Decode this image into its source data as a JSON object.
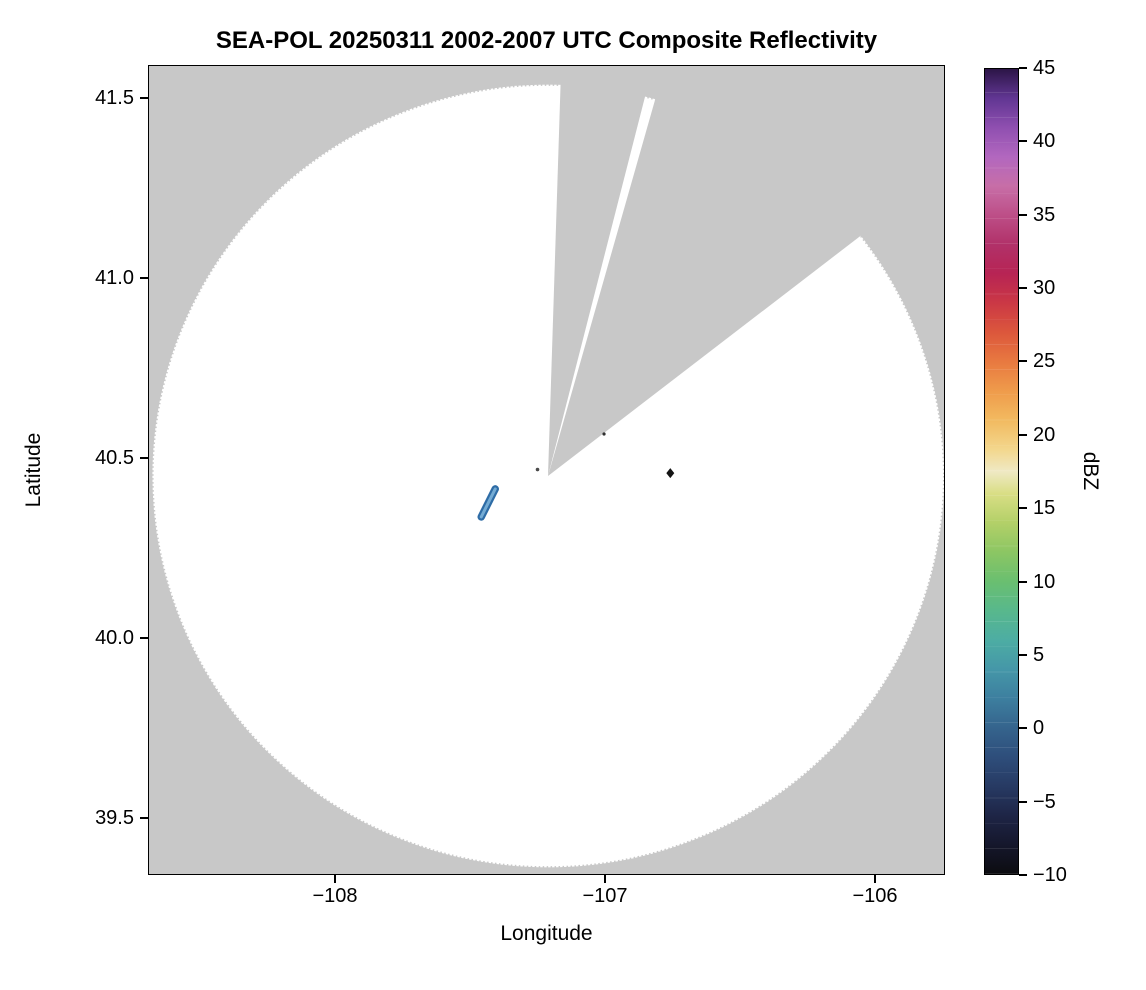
{
  "chart_data": {
    "type": "heatmap",
    "subtype": "radar_composite_reflectivity",
    "title": "SEA-POL 20250311 2002-2007 UTC Composite Reflectivity",
    "xlabel": "Longitude",
    "ylabel": "Latitude",
    "xlim": [
      -108.6926,
      -105.7407
    ],
    "ylim": [
      39.3417,
      41.5917
    ],
    "grid": false,
    "x_ticks": [
      {
        "value": -108,
        "label": "−108"
      },
      {
        "value": -107,
        "label": "−107"
      },
      {
        "value": -106,
        "label": "−106"
      }
    ],
    "y_ticks": [
      {
        "value": 41.5,
        "label": "41.5"
      },
      {
        "value": 41.0,
        "label": "41.0"
      },
      {
        "value": 40.5,
        "label": "40.5"
      },
      {
        "value": 40.0,
        "label": "40.0"
      },
      {
        "value": 39.5,
        "label": "39.5"
      }
    ],
    "colorbar": {
      "label": "dBZ",
      "min": -10,
      "max": 45,
      "ticks": [
        {
          "value": -10,
          "label": "−10"
        },
        {
          "value": -5,
          "label": "−5"
        },
        {
          "value": 0,
          "label": "0"
        },
        {
          "value": 5,
          "label": "5"
        },
        {
          "value": 10,
          "label": "10"
        },
        {
          "value": 15,
          "label": "15"
        },
        {
          "value": 20,
          "label": "20"
        },
        {
          "value": 25,
          "label": "25"
        },
        {
          "value": 30,
          "label": "30"
        },
        {
          "value": 35,
          "label": "35"
        },
        {
          "value": 40,
          "label": "40"
        },
        {
          "value": 45,
          "label": "45"
        }
      ],
      "colormap_stops": [
        {
          "v": -10,
          "color": "#0c0c10"
        },
        {
          "v": -8,
          "color": "#15172c"
        },
        {
          "v": -6,
          "color": "#1e2546"
        },
        {
          "v": -4,
          "color": "#273a63"
        },
        {
          "v": -2,
          "color": "#2e4e7b"
        },
        {
          "v": 0,
          "color": "#35648d"
        },
        {
          "v": 2,
          "color": "#3d7f9f"
        },
        {
          "v": 4,
          "color": "#4597a8"
        },
        {
          "v": 6,
          "color": "#4dada3"
        },
        {
          "v": 8,
          "color": "#58b88c"
        },
        {
          "v": 10,
          "color": "#6abf70"
        },
        {
          "v": 12,
          "color": "#8cc663"
        },
        {
          "v": 14,
          "color": "#b3d068"
        },
        {
          "v": 16,
          "color": "#d9de85"
        },
        {
          "v": 17.5,
          "color": "#efe9c4"
        },
        {
          "v": 19,
          "color": "#f3d78d"
        },
        {
          "v": 21,
          "color": "#f2ba60"
        },
        {
          "v": 23,
          "color": "#ef9b4b"
        },
        {
          "v": 25,
          "color": "#e87940"
        },
        {
          "v": 27,
          "color": "#dc573c"
        },
        {
          "v": 29,
          "color": "#cb3845"
        },
        {
          "v": 31,
          "color": "#b72454"
        },
        {
          "v": 33,
          "color": "#b13169"
        },
        {
          "v": 35,
          "color": "#bd4e87"
        },
        {
          "v": 37,
          "color": "#c76ea7"
        },
        {
          "v": 39,
          "color": "#b267bf"
        },
        {
          "v": 41,
          "color": "#8f4fb0"
        },
        {
          "v": 43,
          "color": "#613693"
        },
        {
          "v": 45,
          "color": "#2c1547"
        }
      ]
    },
    "radar": {
      "center_lon": -107.21,
      "center_lat": 40.45,
      "range_lon_deg": 1.47,
      "range_lat_deg": 1.09,
      "coverage_color": "#ffffff",
      "background_color": "#c8c8c8",
      "blanked_sectors_azimuth_deg": [
        [
          -1,
          13
        ],
        [
          16,
          61
        ]
      ]
    },
    "echoes": [
      {
        "type": "streak",
        "from": [
          -107.459,
          40.336
        ],
        "to": [
          -107.407,
          40.414
        ],
        "dbz_approx": 3,
        "color_outer": "#2e6ca6",
        "color_inner": "#74abd4"
      },
      {
        "type": "diamond",
        "lon": -106.757,
        "lat": 40.458,
        "dbz_approx": -10,
        "color": "#141414",
        "size": 5
      },
      {
        "type": "dot",
        "lon": -107.25,
        "lat": 40.468,
        "dbz_approx": -9,
        "color": "#4a4a4a",
        "size": 1.8
      },
      {
        "type": "dot",
        "lon": -107.003,
        "lat": 40.567,
        "dbz_approx": -9,
        "color": "#303030",
        "size": 1.6
      }
    ]
  }
}
